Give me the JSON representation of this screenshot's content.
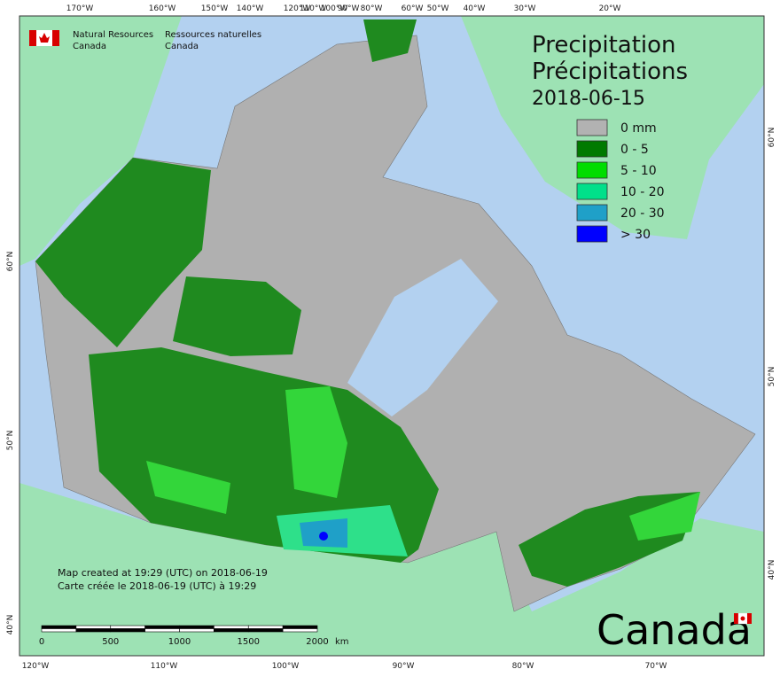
{
  "header": {
    "org_en": [
      "Natural Resources",
      "Canada"
    ],
    "org_fr": [
      "Ressources naturelles",
      "Canada"
    ]
  },
  "title": {
    "en": "Precipitation",
    "fr": "Précipitations",
    "date": "2018-06-15"
  },
  "legend": [
    {
      "label": "0 mm",
      "color": "#b2b2b2"
    },
    {
      "label": "0 - 5",
      "color": "#007a00"
    },
    {
      "label": "5 - 10",
      "color": "#00dd00"
    },
    {
      "label": "10 - 20",
      "color": "#00e08a"
    },
    {
      "label": "20 - 30",
      "color": "#1fa0c8"
    },
    {
      "label": "> 30",
      "color": "#0000ff"
    }
  ],
  "notes": [
    "Map created at 19:29 (UTC) on 2018-06-19",
    "Carte créée le 2018-06-19 (UTC) à 19:29"
  ],
  "scale_bar": {
    "ticks": [
      "0",
      "500",
      "1000",
      "1500",
      "2000"
    ],
    "unit": "km"
  },
  "graticule": {
    "top": [
      "170°W",
      "160°W",
      "150°W",
      "140°W",
      "120°W",
      "110°W",
      "100°W",
      "90°W",
      "80°W",
      "60°W",
      "50°W",
      "40°W",
      "30°W",
      "20°W"
    ],
    "bottom": [
      "120°W",
      "110°W",
      "100°W",
      "90°W",
      "80°W",
      "70°W"
    ],
    "left": [
      "60°N",
      "50°N",
      "40°N"
    ],
    "right": [
      "60°N",
      "50°N",
      "40°N"
    ]
  },
  "wordmark": "Canada"
}
